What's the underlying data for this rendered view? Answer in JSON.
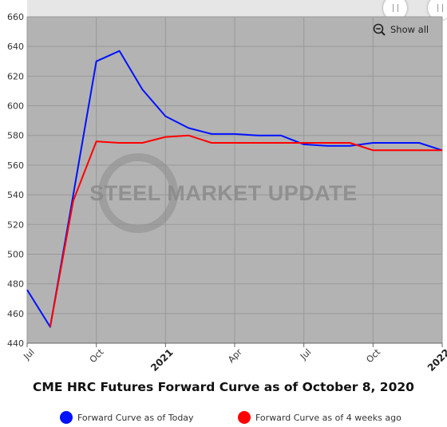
{
  "chart_data": {
    "type": "line",
    "title": "CME HRC Futures Forward Curve as of October 8, 2020",
    "xlabel": "",
    "ylabel": "",
    "x": [
      "2020-07",
      "2020-08",
      "2020-09",
      "2020-10",
      "2020-11",
      "2020-12",
      "2021-01",
      "2021-02",
      "2021-03",
      "2021-04",
      "2021-05",
      "2021-06",
      "2021-07",
      "2021-08",
      "2021-09",
      "2021-10",
      "2021-11",
      "2021-12",
      "2022-01"
    ],
    "x_tick_labels": [
      {
        "x": "2020-07",
        "label": "Jul",
        "bold": false
      },
      {
        "x": "2020-10",
        "label": "Oct",
        "bold": false
      },
      {
        "x": "2021-01",
        "label": "2021",
        "bold": true
      },
      {
        "x": "2021-04",
        "label": "Apr",
        "bold": false
      },
      {
        "x": "2021-07",
        "label": "Jul",
        "bold": false
      },
      {
        "x": "2021-10",
        "label": "Oct",
        "bold": false
      },
      {
        "x": "2022-01",
        "label": "2022",
        "bold": true
      }
    ],
    "y_ticks": [
      440,
      460,
      480,
      500,
      520,
      540,
      560,
      580,
      600,
      620,
      640,
      660
    ],
    "ylim": [
      440,
      660
    ],
    "grid": true,
    "series": [
      {
        "name": "Forward Curve as of Today",
        "color": "#0011ff",
        "values": [
          476,
          451,
          540,
          630,
          637,
          611,
          593,
          585,
          581,
          581,
          580,
          580,
          574,
          573,
          573,
          575,
          575,
          575,
          570
        ]
      },
      {
        "name": "Forward Curve as of 4 weeks ago",
        "color": "#ff0000",
        "values": [
          null,
          451,
          536,
          576,
          575,
          575,
          579,
          580,
          575,
          575,
          575,
          575,
          575,
          575,
          575,
          570,
          570,
          570,
          570
        ]
      }
    ],
    "legend_position": "bottom"
  },
  "watermark": "STEEL MARKET UPDATE",
  "zoom": {
    "label": "Show all",
    "icon": "zoom-out-icon"
  },
  "colors": {
    "plot_background": "#b3b3b3",
    "gridline": "#999999"
  }
}
